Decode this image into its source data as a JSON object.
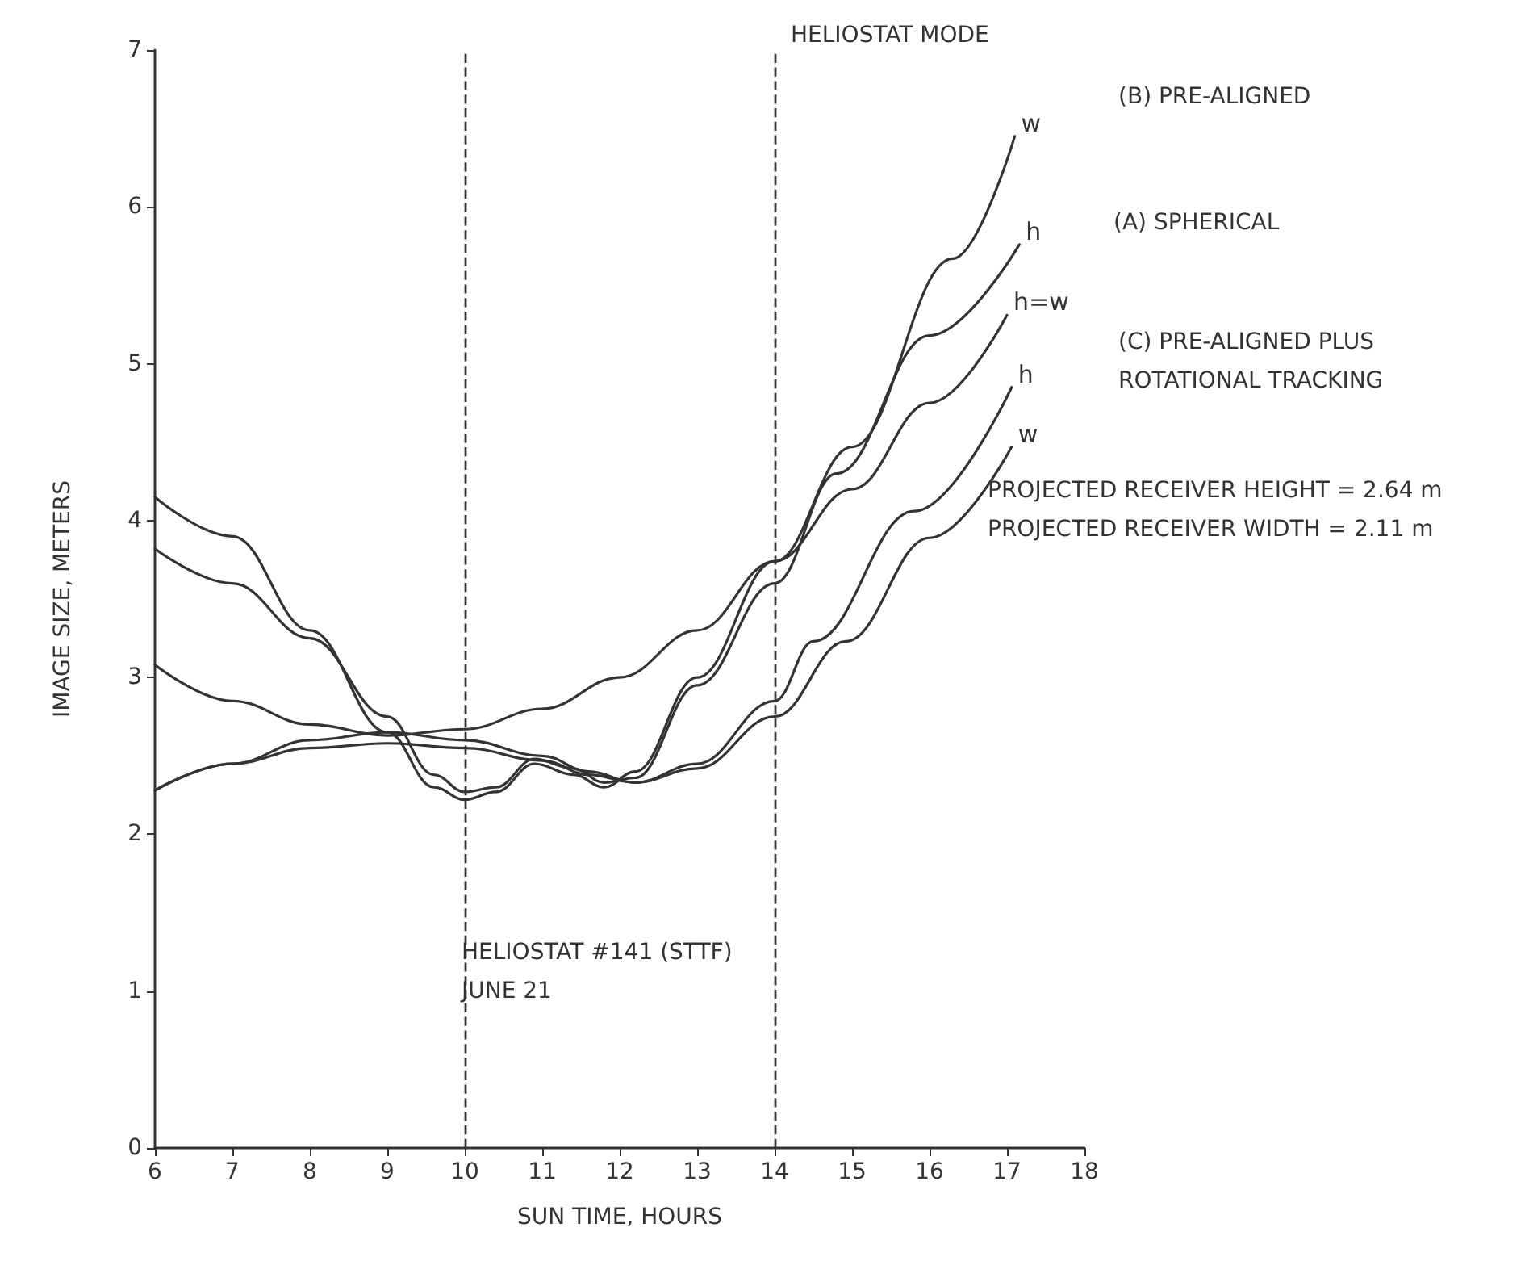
{
  "chart_data": {
    "type": "line",
    "xlabel": "SUN TIME, HOURS",
    "ylabel": "IMAGE SIZE, METERS",
    "xlim": [
      6,
      18
    ],
    "xticks": [
      6,
      7,
      8,
      9,
      10,
      11,
      12,
      13,
      14,
      15,
      16,
      17,
      18
    ],
    "ylim": [
      0,
      7
    ],
    "yticks": [
      0,
      1,
      2,
      3,
      4,
      5,
      6,
      7
    ],
    "grid": false,
    "legend": false,
    "marker": "none",
    "line_style": "solid",
    "series": [
      {
        "name": "w",
        "color": "#333333",
        "x": [
          6,
          7,
          8,
          9,
          9.6,
          10,
          10.4,
          10.9,
          11.4,
          11.8,
          12.2,
          13,
          14,
          15,
          16.3,
          17.1
        ],
        "values": [
          4.15,
          3.9,
          3.3,
          2.65,
          2.3,
          2.22,
          2.27,
          2.45,
          2.38,
          2.3,
          2.4,
          3.0,
          3.74,
          4.47,
          5.67,
          6.45
        ]
      },
      {
        "name": "h",
        "color": "#333333",
        "x": [
          6,
          7,
          8,
          9,
          9.6,
          10,
          10.4,
          10.9,
          11.4,
          11.8,
          12.2,
          13,
          14,
          14.8,
          16,
          17.16
        ],
        "values": [
          3.82,
          3.6,
          3.25,
          2.75,
          2.38,
          2.27,
          2.3,
          2.48,
          2.42,
          2.33,
          2.36,
          2.95,
          3.6,
          4.3,
          5.18,
          5.76
        ]
      },
      {
        "name": "h=w",
        "color": "#333333",
        "x": [
          6,
          7,
          8,
          9,
          10,
          11,
          12,
          13,
          14,
          15,
          16,
          17
        ],
        "values": [
          3.08,
          2.85,
          2.7,
          2.63,
          2.67,
          2.8,
          3.0,
          3.3,
          3.74,
          4.2,
          4.75,
          5.31
        ]
      },
      {
        "name": "h",
        "color": "#333333",
        "x": [
          6,
          7,
          8,
          9,
          10,
          11,
          11.6,
          12.2,
          13,
          14,
          14.5,
          15.8,
          17.06
        ],
        "values": [
          2.28,
          2.45,
          2.6,
          2.65,
          2.6,
          2.5,
          2.4,
          2.33,
          2.45,
          2.85,
          3.23,
          4.06,
          4.85
        ]
      },
      {
        "name": "w",
        "color": "#333333",
        "x": [
          6,
          7,
          8,
          9,
          10,
          11,
          11.6,
          12.2,
          13,
          14,
          14.92,
          16,
          17.06
        ],
        "values": [
          2.28,
          2.45,
          2.55,
          2.58,
          2.55,
          2.47,
          2.38,
          2.33,
          2.42,
          2.75,
          3.23,
          3.89,
          4.47
        ]
      }
    ],
    "ref_lines": [
      {
        "axis": "x",
        "value": 10,
        "line_style": "dashed",
        "color": "#333333"
      },
      {
        "axis": "x",
        "value": 14,
        "line_style": "dashed",
        "color": "#333333"
      }
    ],
    "annotations": [
      "HELIOSTAT MODE",
      "(B) PRE-ALIGNED",
      "(A) SPHERICAL",
      "(C) PRE-ALIGNED PLUS\nROTATIONAL TRACKING",
      "HELIOSTAT #141 (STTF)\nJUNE 21",
      "PROJECTED RECEIVER HEIGHT = 2.64 m\nPROJECTED RECEIVER WIDTH = 2.11 m"
    ]
  }
}
